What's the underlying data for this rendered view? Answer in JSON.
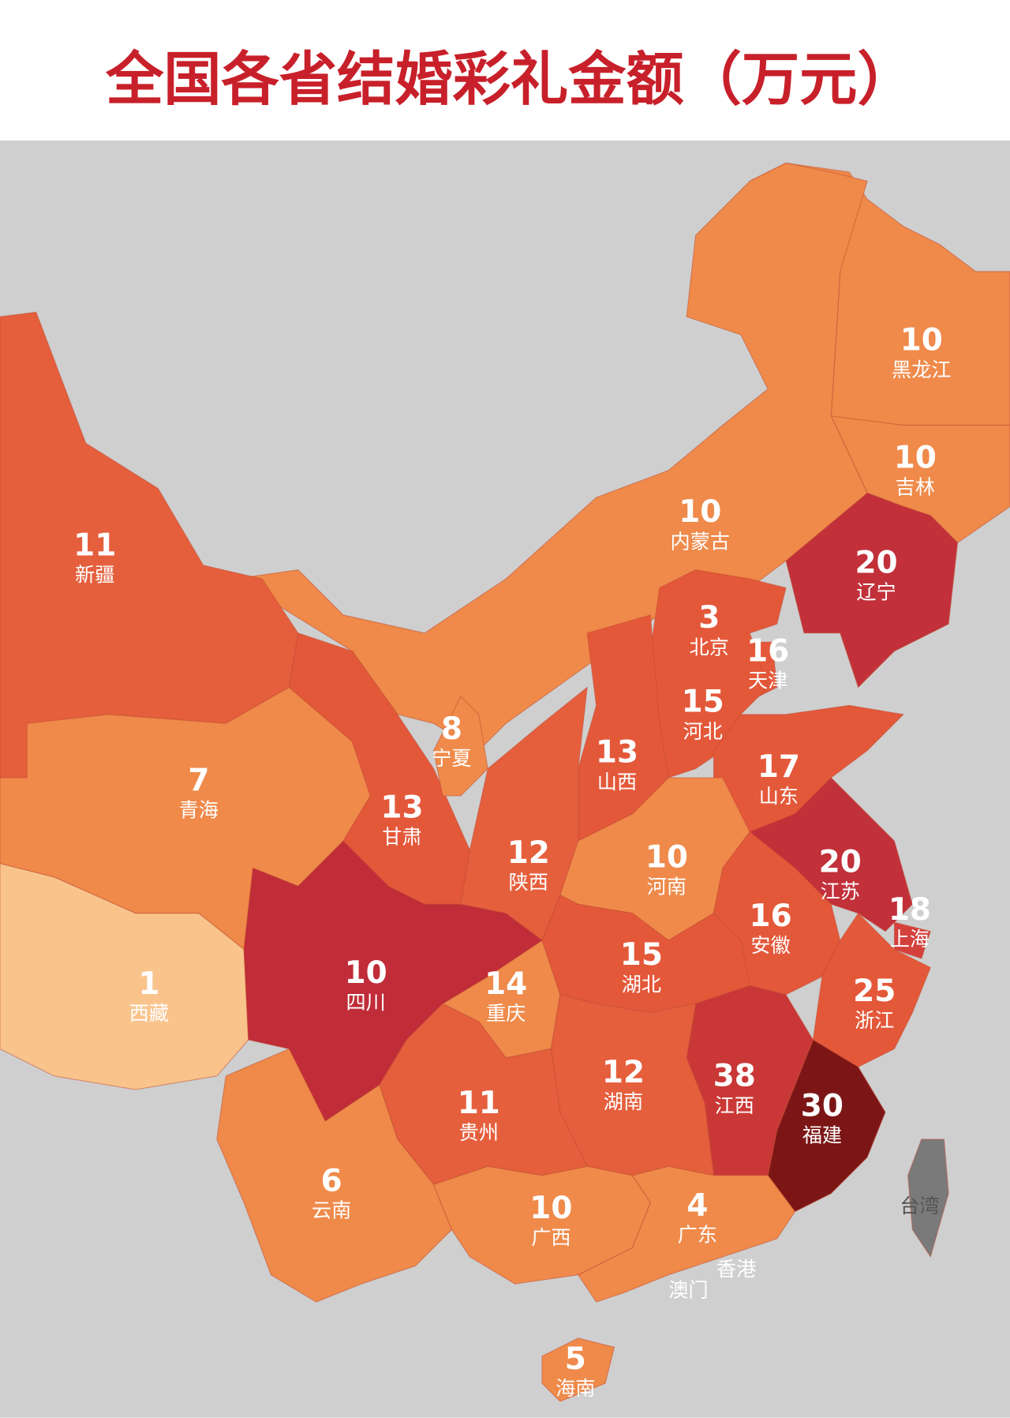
{
  "chart_data": {
    "type": "choropleth",
    "title": "全国各省结婚彩礼金额（万元）",
    "regions": [
      {
        "name": "黑龙江",
        "value": 10,
        "color": "#ef8a4a"
      },
      {
        "name": "吉林",
        "value": 10,
        "color": "#ef8a4a"
      },
      {
        "name": "辽宁",
        "value": 20,
        "color": "#c2303a"
      },
      {
        "name": "内蒙古",
        "value": 10,
        "color": "#ef8a4a"
      },
      {
        "name": "北京",
        "value": 3,
        "color": "#f2a066"
      },
      {
        "name": "天津",
        "value": 16,
        "color": "#e4583a"
      },
      {
        "name": "河北",
        "value": 15,
        "color": "#e4583a"
      },
      {
        "name": "山西",
        "value": 13,
        "color": "#e4583a"
      },
      {
        "name": "山东",
        "value": 17,
        "color": "#e4583a"
      },
      {
        "name": "新疆",
        "value": 11,
        "color": "#e55f3d"
      },
      {
        "name": "青海",
        "value": 7,
        "color": "#ef8a4a"
      },
      {
        "name": "西藏",
        "value": 1,
        "color": "#f9c48c"
      },
      {
        "name": "甘肃",
        "value": 13,
        "color": "#e4583a"
      },
      {
        "name": "宁夏",
        "value": 8,
        "color": "#ef8a4a"
      },
      {
        "name": "陕西",
        "value": 12,
        "color": "#e55f3d"
      },
      {
        "name": "河南",
        "value": 10,
        "color": "#ef8a4a"
      },
      {
        "name": "江苏",
        "value": 20,
        "color": "#c2303a"
      },
      {
        "name": "上海",
        "value": 18,
        "color": "#d4413c"
      },
      {
        "name": "安徽",
        "value": 16,
        "color": "#e4583a"
      },
      {
        "name": "湖北",
        "value": 15,
        "color": "#e4583a"
      },
      {
        "name": "重庆",
        "value": 14,
        "color": "#e4583a"
      },
      {
        "name": "四川",
        "value": 10,
        "color": "#ef8a4a"
      },
      {
        "name": "浙江",
        "value": 25,
        "color": "#c02c38"
      },
      {
        "name": "江西",
        "value": 38,
        "color": "#7c1616"
      },
      {
        "name": "福建",
        "value": 30,
        "color": "#c93836"
      },
      {
        "name": "湖南",
        "value": 12,
        "color": "#e55f3d"
      },
      {
        "name": "贵州",
        "value": 11,
        "color": "#e55f3d"
      },
      {
        "name": "云南",
        "value": 6,
        "color": "#ef8a4a"
      },
      {
        "name": "广西",
        "value": 10,
        "color": "#ef8a4a"
      },
      {
        "name": "广东",
        "value": 4,
        "color": "#ef8a4a"
      },
      {
        "name": "海南",
        "value": 5,
        "color": "#ef8a4a"
      }
    ],
    "labels": [
      "台湾",
      "香港",
      "澳门"
    ]
  }
}
